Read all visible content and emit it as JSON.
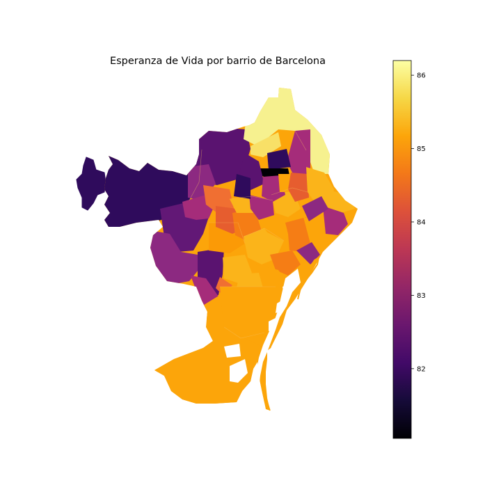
{
  "title": "Esperanza de Vida por barrio de Barcelona",
  "colormap": "inferno",
  "colorbar": {
    "min": 81.05,
    "max": 86.2,
    "ticks": [
      82,
      83,
      84,
      85,
      86
    ],
    "tick_labels": [
      "82",
      "83",
      "84",
      "85",
      "86"
    ]
  },
  "map": {
    "background": "#ffffff",
    "border_color": "#f6c060"
  }
}
